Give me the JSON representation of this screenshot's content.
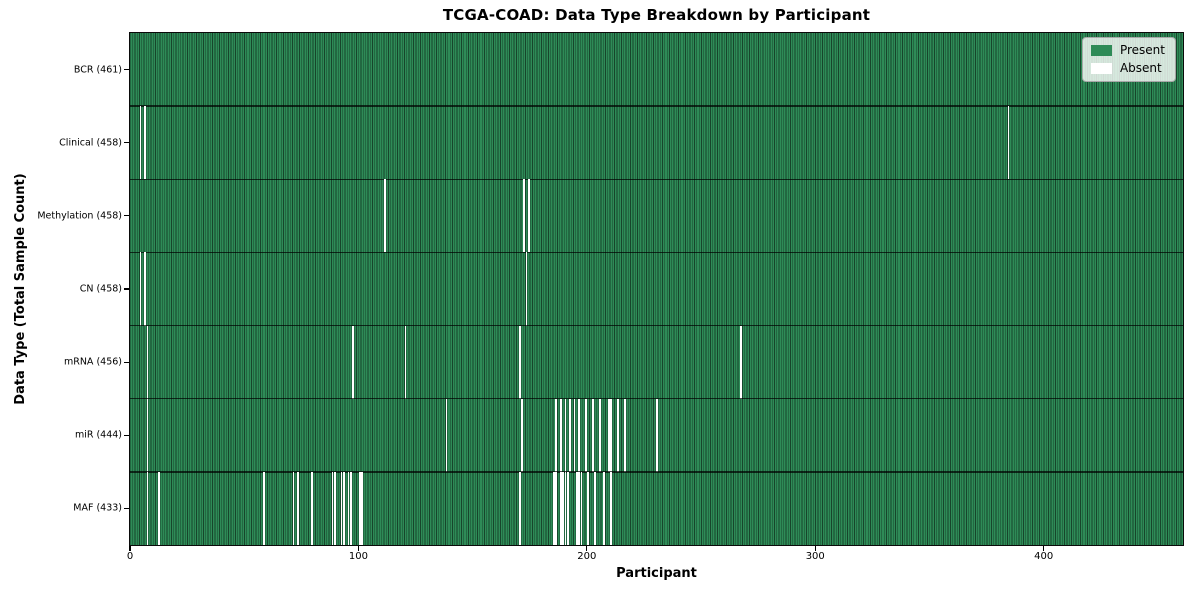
{
  "chart_data": {
    "type": "heatmap",
    "title": "TCGA-COAD: Data Type Breakdown by Participant",
    "xlabel": "Participant",
    "ylabel": "Data Type (Total Sample Count)",
    "n_participants": 461,
    "xlim": [
      0,
      461
    ],
    "x_ticks": [
      0,
      100,
      200,
      300,
      400
    ],
    "grid": false,
    "legend_position": "upper right",
    "legend_items": [
      {
        "label": "Present",
        "color": "#2e8b57"
      },
      {
        "label": "Absent",
        "color": "#ffffff"
      }
    ],
    "colors": {
      "present": "#2e8b57",
      "absent": "#ffffff",
      "cell_edge": "#14402a",
      "plot_border": "#000000"
    },
    "rows": [
      {
        "name": "BCR",
        "label": "BCR (461)",
        "total": 461,
        "absent_participants": []
      },
      {
        "name": "Clinical",
        "label": "Clinical (458)",
        "total": 458,
        "absent_participants": [
          4,
          6,
          384
        ]
      },
      {
        "name": "Methylation",
        "label": "Methylation (458)",
        "total": 458,
        "absent_participants": [
          111,
          172,
          174
        ]
      },
      {
        "name": "CN",
        "label": "CN (458)",
        "total": 458,
        "absent_participants": [
          4,
          6,
          173
        ]
      },
      {
        "name": "mRNA",
        "label": "mRNA (456)",
        "total": 456,
        "absent_participants": [
          7,
          97,
          120,
          170,
          267
        ]
      },
      {
        "name": "miR",
        "label": "miR (444)",
        "total": 444,
        "absent_participants": [
          7,
          138,
          171,
          186,
          188,
          190,
          192,
          194,
          196,
          199,
          202,
          205,
          209,
          210,
          213,
          216,
          230
        ]
      },
      {
        "name": "MAF",
        "label": "MAF (433)",
        "total": 433,
        "absent_participants": [
          7,
          12,
          58,
          71,
          73,
          79,
          88,
          89,
          92,
          93,
          95,
          96,
          100,
          101,
          170,
          185,
          186,
          188,
          189,
          190,
          191,
          195,
          196,
          197,
          200,
          203,
          207,
          210
        ]
      }
    ]
  }
}
